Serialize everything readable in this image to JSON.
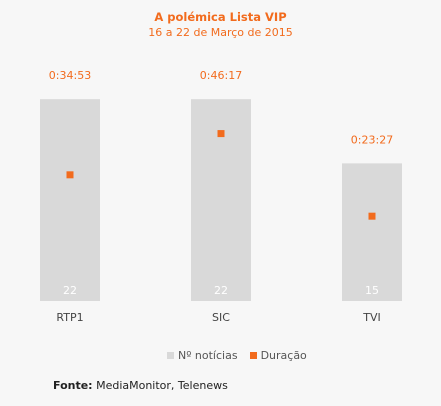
{
  "title": "A polémica Lista VIP",
  "subtitle": "16 a 22 de Março de 2015",
  "colors": {
    "bar": "#d9d9d9",
    "marker": "#f26b1d",
    "title": "#f26b1d",
    "bar_label": "#ffffff",
    "tick": "#444444"
  },
  "chart_data": {
    "type": "bar",
    "categories": [
      "RTP1",
      "SIC",
      "TVI"
    ],
    "series": [
      {
        "name": "Nº notícias",
        "type": "bar",
        "values": [
          22,
          22,
          15
        ],
        "labels": [
          "22",
          "22",
          "15"
        ]
      },
      {
        "name": "Duração",
        "type": "scatter",
        "values": [
          2093,
          2777,
          1407
        ],
        "labels": [
          "0:34:53",
          "0:46:17",
          "0:23:27"
        ]
      }
    ],
    "ylim_bar": [
      0,
      23
    ],
    "ylim_duration_seconds": [
      0,
      3500
    ],
    "legend": "bottom",
    "grid": false
  },
  "legend": {
    "bar_label": "Nº notícias",
    "marker_label": "Duração"
  },
  "source": {
    "label": "Fonte:",
    "text": "MediaMonitor, Telenews"
  }
}
